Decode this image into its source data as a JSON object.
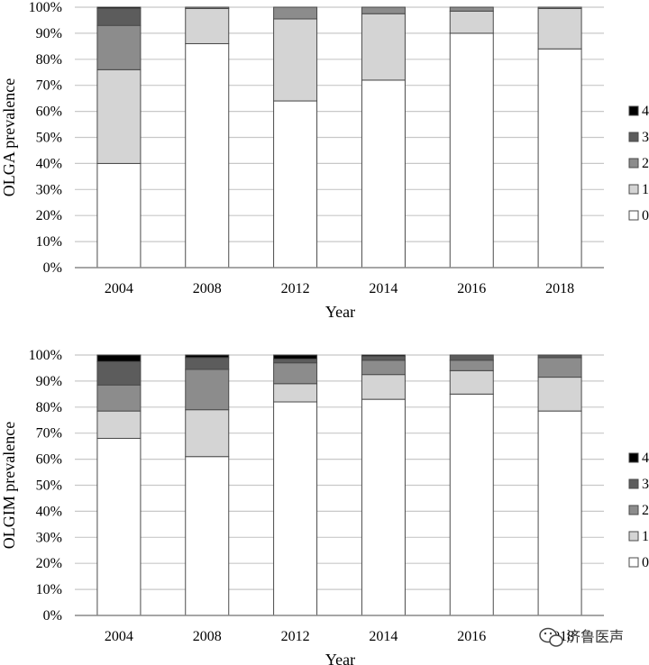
{
  "chart_data": [
    {
      "type": "bar",
      "stacked": true,
      "categories": [
        "2004",
        "2008",
        "2012",
        "2014",
        "2016",
        "2018"
      ],
      "series": [
        {
          "name": "0",
          "color": "#ffffff",
          "values": [
            40,
            86,
            64,
            72,
            90,
            84
          ]
        },
        {
          "name": "1",
          "color": "#d4d4d4",
          "values": [
            36,
            13.5,
            31.5,
            25.5,
            8.5,
            15.5
          ]
        },
        {
          "name": "2",
          "color": "#8c8c8c",
          "values": [
            17,
            0.5,
            4.5,
            2.5,
            1.5,
            0.5
          ]
        },
        {
          "name": "3",
          "color": "#5c5c5c",
          "values": [
            6.5,
            0,
            0,
            0,
            0,
            0
          ]
        },
        {
          "name": "4",
          "color": "#000000",
          "values": [
            0.5,
            0,
            0,
            0,
            0,
            0
          ]
        }
      ],
      "ylabel": "OLGA prevalence",
      "xlabel": "Year",
      "ylim": [
        0,
        100
      ],
      "yticks": [
        "0%",
        "10%",
        "20%",
        "30%",
        "40%",
        "50%",
        "60%",
        "70%",
        "80%",
        "90%",
        "100%"
      ],
      "grid": true,
      "legend_position": "right"
    },
    {
      "type": "bar",
      "stacked": true,
      "categories": [
        "2004",
        "2008",
        "2012",
        "2014",
        "2016",
        "2018"
      ],
      "series": [
        {
          "name": "0",
          "color": "#ffffff",
          "values": [
            68,
            61,
            82,
            83,
            85,
            78.5
          ]
        },
        {
          "name": "1",
          "color": "#d4d4d4",
          "values": [
            10.5,
            18,
            7,
            9.5,
            9,
            13
          ]
        },
        {
          "name": "2",
          "color": "#8c8c8c",
          "values": [
            10,
            15.5,
            8,
            5.5,
            4,
            7.5
          ]
        },
        {
          "name": "3",
          "color": "#5c5c5c",
          "values": [
            9,
            4.5,
            1.5,
            1.5,
            2,
            1
          ]
        },
        {
          "name": "4",
          "color": "#000000",
          "values": [
            2.5,
            1,
            1.5,
            0.5,
            0,
            0
          ]
        }
      ],
      "ylabel": "OLGIM prevalence",
      "xlabel": "Year",
      "ylim": [
        0,
        100
      ],
      "yticks": [
        "0%",
        "10%",
        "20%",
        "30%",
        "40%",
        "50%",
        "60%",
        "70%",
        "80%",
        "90%",
        "100%"
      ],
      "grid": true,
      "legend_position": "right"
    }
  ],
  "watermark": "济鲁医声",
  "watermark_icon": "wechat-icon"
}
